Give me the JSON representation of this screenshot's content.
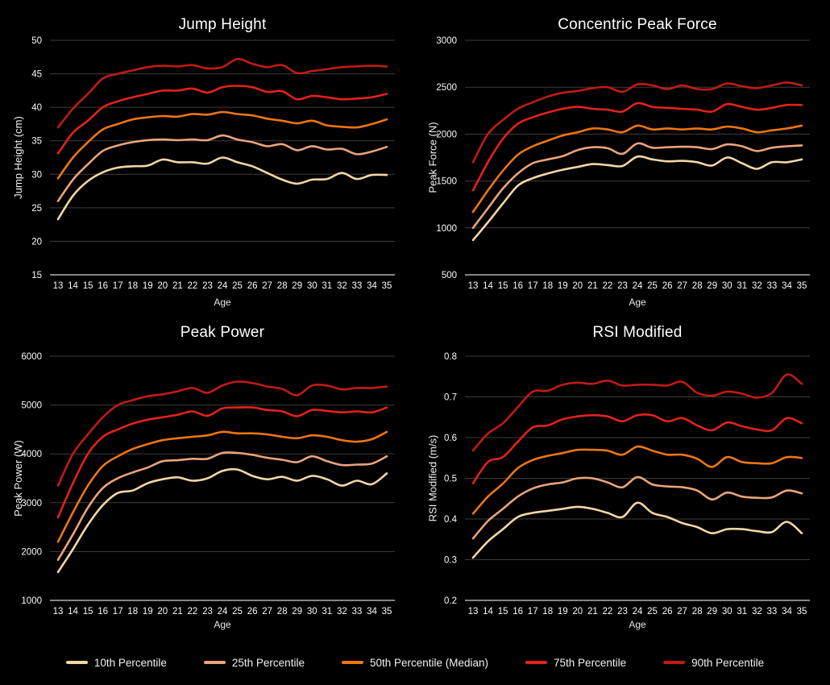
{
  "page": {
    "background": "#000000",
    "grid_color": "#3d3d3d",
    "axis_color": "#b0b0b0",
    "text_color": "#ffffff"
  },
  "legend": {
    "items": [
      {
        "label": "10th Percentile",
        "color": "#F4D6A6"
      },
      {
        "label": "25th Percentile",
        "color": "#EBA479"
      },
      {
        "label": "50th Percentile (Median)",
        "color": "#EE7512"
      },
      {
        "label": "75th Percentile",
        "color": "#E42219"
      },
      {
        "label": "90th Percentile",
        "color": "#C21B12"
      }
    ]
  },
  "chart_data": [
    {
      "type": "line",
      "title": "Jump Height",
      "xlabel": "Age",
      "ylabel": "Jump Height (cm)",
      "x": [
        13,
        14,
        15,
        16,
        17,
        18,
        19,
        20,
        21,
        22,
        23,
        24,
        25,
        26,
        27,
        28,
        29,
        30,
        31,
        32,
        33,
        34,
        35
      ],
      "ylim": [
        15,
        50
      ],
      "yticks": [
        15,
        20,
        25,
        30,
        35,
        40,
        45,
        50
      ],
      "grid": true,
      "legend_position": "bottom-shared",
      "series": [
        {
          "name": "10th Percentile",
          "color": "#F4D6A6",
          "values": [
            23.3,
            26.8,
            29.0,
            30.3,
            31.0,
            31.2,
            31.3,
            32.2,
            31.8,
            31.8,
            31.6,
            32.5,
            31.8,
            31.2,
            30.2,
            29.2,
            28.6,
            29.2,
            29.3,
            30.2,
            29.3,
            29.9,
            29.9
          ]
        },
        {
          "name": "25th Percentile",
          "color": "#EBA479",
          "values": [
            26.0,
            29.2,
            31.5,
            33.5,
            34.3,
            34.8,
            35.1,
            35.2,
            35.1,
            35.2,
            35.1,
            35.8,
            35.2,
            34.8,
            34.2,
            34.5,
            33.6,
            34.2,
            33.7,
            33.8,
            33.0,
            33.4,
            34.1
          ]
        },
        {
          "name": "50th Percentile (Median)",
          "color": "#EE7512",
          "values": [
            29.4,
            32.5,
            34.8,
            36.7,
            37.5,
            38.2,
            38.5,
            38.7,
            38.6,
            39.0,
            38.9,
            39.3,
            39.0,
            38.8,
            38.3,
            38.0,
            37.6,
            38.0,
            37.3,
            37.1,
            37.0,
            37.5,
            38.2
          ]
        },
        {
          "name": "75th Percentile",
          "color": "#E42219",
          "values": [
            33.1,
            36.2,
            38.0,
            40.0,
            40.9,
            41.5,
            42.0,
            42.5,
            42.5,
            42.8,
            42.2,
            43.0,
            43.2,
            43.0,
            42.3,
            42.4,
            41.2,
            41.7,
            41.5,
            41.2,
            41.3,
            41.5,
            42.0
          ]
        },
        {
          "name": "90th Percentile",
          "color": "#C21B12",
          "values": [
            37.0,
            39.8,
            42.0,
            44.3,
            45.0,
            45.5,
            46.0,
            46.2,
            46.1,
            46.3,
            45.8,
            46.0,
            47.2,
            46.5,
            46.0,
            46.3,
            45.1,
            45.4,
            45.7,
            46.0,
            46.1,
            46.2,
            46.1
          ]
        }
      ]
    },
    {
      "type": "line",
      "title": "Concentric Peak Force",
      "xlabel": "Age",
      "ylabel": "Peak Force (N)",
      "x": [
        13,
        14,
        15,
        16,
        17,
        18,
        19,
        20,
        21,
        22,
        23,
        24,
        25,
        26,
        27,
        28,
        29,
        30,
        31,
        32,
        33,
        34,
        35
      ],
      "ylim": [
        500,
        3000
      ],
      "yticks": [
        500,
        1000,
        1500,
        2000,
        2500,
        3000
      ],
      "grid": true,
      "legend_position": "bottom-shared",
      "series": [
        {
          "name": "10th Percentile",
          "color": "#F4D6A6",
          "values": [
            870,
            1060,
            1260,
            1450,
            1530,
            1580,
            1620,
            1650,
            1680,
            1670,
            1660,
            1760,
            1730,
            1710,
            1715,
            1700,
            1665,
            1750,
            1690,
            1630,
            1700,
            1700,
            1730
          ]
        },
        {
          "name": "25th Percentile",
          "color": "#EBA479",
          "values": [
            1000,
            1210,
            1420,
            1580,
            1690,
            1730,
            1765,
            1830,
            1860,
            1850,
            1790,
            1900,
            1855,
            1860,
            1865,
            1860,
            1840,
            1890,
            1870,
            1820,
            1855,
            1870,
            1880
          ]
        },
        {
          "name": "50th Percentile (Median)",
          "color": "#EE7512",
          "values": [
            1170,
            1400,
            1610,
            1780,
            1870,
            1930,
            1985,
            2020,
            2060,
            2050,
            2020,
            2090,
            2050,
            2060,
            2050,
            2060,
            2050,
            2080,
            2060,
            2020,
            2040,
            2060,
            2090
          ]
        },
        {
          "name": "75th Percentile",
          "color": "#E42219",
          "values": [
            1400,
            1700,
            1950,
            2110,
            2180,
            2230,
            2270,
            2290,
            2270,
            2260,
            2240,
            2330,
            2290,
            2280,
            2270,
            2260,
            2240,
            2320,
            2290,
            2260,
            2280,
            2310,
            2310
          ]
        },
        {
          "name": "90th Percentile",
          "color": "#C21B12",
          "values": [
            1700,
            2000,
            2150,
            2270,
            2340,
            2400,
            2440,
            2460,
            2490,
            2500,
            2450,
            2530,
            2520,
            2480,
            2520,
            2480,
            2480,
            2540,
            2510,
            2490,
            2520,
            2550,
            2520
          ]
        }
      ]
    },
    {
      "type": "line",
      "title": "Peak Power",
      "xlabel": "Age",
      "ylabel": "Peak Power (W)",
      "x": [
        13,
        14,
        15,
        16,
        17,
        18,
        19,
        20,
        21,
        22,
        23,
        24,
        25,
        26,
        27,
        28,
        29,
        30,
        31,
        32,
        33,
        34,
        35
      ],
      "ylim": [
        1000,
        6000
      ],
      "yticks": [
        1000,
        2000,
        3000,
        4000,
        5000,
        6000
      ],
      "grid": true,
      "legend_position": "bottom-shared",
      "series": [
        {
          "name": "10th Percentile",
          "color": "#F4D6A6",
          "values": [
            1580,
            2050,
            2550,
            2950,
            3200,
            3250,
            3400,
            3480,
            3520,
            3450,
            3500,
            3650,
            3680,
            3550,
            3480,
            3530,
            3450,
            3550,
            3480,
            3350,
            3450,
            3380,
            3600
          ]
        },
        {
          "name": "25th Percentile",
          "color": "#EBA479",
          "values": [
            1830,
            2350,
            2900,
            3300,
            3500,
            3620,
            3720,
            3850,
            3870,
            3900,
            3900,
            4020,
            4020,
            3980,
            3920,
            3880,
            3830,
            3950,
            3850,
            3770,
            3780,
            3800,
            3950
          ]
        },
        {
          "name": "50th Percentile (Median)",
          "color": "#EE7512",
          "values": [
            2200,
            2800,
            3350,
            3750,
            3950,
            4100,
            4200,
            4280,
            4320,
            4350,
            4380,
            4450,
            4420,
            4420,
            4400,
            4350,
            4320,
            4380,
            4350,
            4280,
            4250,
            4300,
            4450
          ]
        },
        {
          "name": "75th Percentile",
          "color": "#E42219",
          "values": [
            2700,
            3400,
            4000,
            4350,
            4500,
            4620,
            4700,
            4750,
            4800,
            4870,
            4780,
            4930,
            4950,
            4950,
            4900,
            4870,
            4770,
            4900,
            4880,
            4850,
            4870,
            4850,
            4950
          ]
        },
        {
          "name": "90th Percentile",
          "color": "#C21B12",
          "values": [
            3350,
            4000,
            4400,
            4750,
            5000,
            5100,
            5180,
            5220,
            5280,
            5350,
            5250,
            5400,
            5480,
            5450,
            5380,
            5330,
            5200,
            5400,
            5400,
            5320,
            5350,
            5350,
            5380
          ]
        }
      ]
    },
    {
      "type": "line",
      "title": "RSI Modified",
      "xlabel": "Age",
      "ylabel": "RSI Modified (m/s)",
      "x": [
        13,
        14,
        15,
        16,
        17,
        18,
        19,
        20,
        21,
        22,
        23,
        24,
        25,
        26,
        27,
        28,
        29,
        30,
        31,
        32,
        33,
        34,
        35
      ],
      "ylim": [
        0.2,
        0.8
      ],
      "yticks": [
        0.2,
        0.3,
        0.4,
        0.5,
        0.6,
        0.7,
        0.8
      ],
      "grid": true,
      "legend_position": "bottom-shared",
      "series": [
        {
          "name": "10th Percentile",
          "color": "#F4D6A6",
          "values": [
            0.305,
            0.345,
            0.375,
            0.405,
            0.415,
            0.42,
            0.425,
            0.43,
            0.425,
            0.415,
            0.405,
            0.44,
            0.415,
            0.405,
            0.39,
            0.38,
            0.365,
            0.375,
            0.375,
            0.37,
            0.368,
            0.393,
            0.365
          ]
        },
        {
          "name": "25th Percentile",
          "color": "#EBA479",
          "values": [
            0.352,
            0.395,
            0.425,
            0.455,
            0.475,
            0.485,
            0.49,
            0.5,
            0.5,
            0.49,
            0.478,
            0.503,
            0.485,
            0.48,
            0.478,
            0.47,
            0.448,
            0.465,
            0.455,
            0.452,
            0.453,
            0.47,
            0.463
          ]
        },
        {
          "name": "50th Percentile (Median)",
          "color": "#EE7512",
          "values": [
            0.413,
            0.455,
            0.487,
            0.525,
            0.545,
            0.555,
            0.562,
            0.57,
            0.57,
            0.568,
            0.558,
            0.578,
            0.568,
            0.558,
            0.558,
            0.548,
            0.528,
            0.552,
            0.54,
            0.537,
            0.537,
            0.552,
            0.55
          ]
        },
        {
          "name": "75th Percentile",
          "color": "#E42219",
          "values": [
            0.488,
            0.54,
            0.552,
            0.59,
            0.625,
            0.63,
            0.645,
            0.652,
            0.655,
            0.652,
            0.64,
            0.655,
            0.655,
            0.64,
            0.648,
            0.63,
            0.618,
            0.637,
            0.628,
            0.62,
            0.618,
            0.648,
            0.635
          ]
        },
        {
          "name": "90th Percentile",
          "color": "#C21B12",
          "values": [
            0.568,
            0.61,
            0.635,
            0.675,
            0.713,
            0.715,
            0.73,
            0.735,
            0.732,
            0.74,
            0.728,
            0.73,
            0.73,
            0.728,
            0.737,
            0.71,
            0.703,
            0.713,
            0.708,
            0.698,
            0.71,
            0.755,
            0.732
          ]
        }
      ]
    }
  ]
}
